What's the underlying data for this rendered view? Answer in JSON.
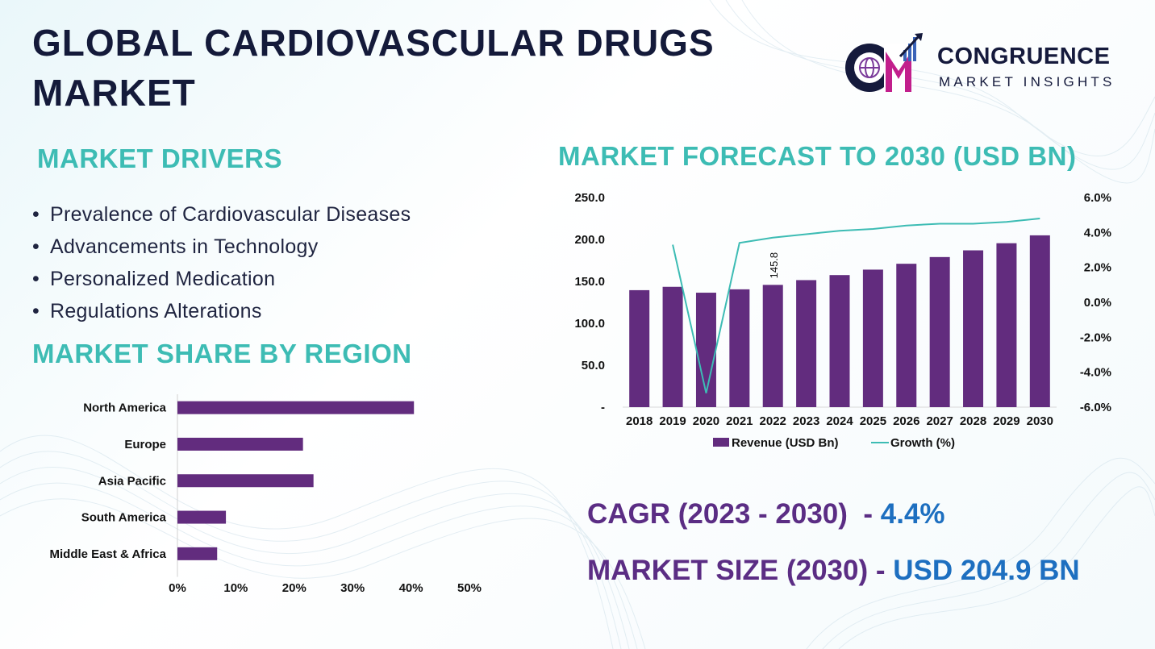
{
  "title_line1": "GLOBAL CARDIOVASCULAR DRUGS",
  "title_line2": "MARKET",
  "logo": {
    "name": "CONGRUENCE",
    "tagline": "MARKET INSIGHTS",
    "icon": "cm-globe-logo"
  },
  "drivers": {
    "title": "MARKET DRIVERS",
    "items": [
      "Prevalence of Cardiovascular Diseases",
      "Advancements in Technology",
      "Personalized Medication",
      "Regulations Alterations"
    ]
  },
  "share_title": "MARKET SHARE BY REGION",
  "forecast_title": "MARKET FORECAST TO 2030 (USD BN)",
  "metrics": {
    "cagr_label": "CAGR (2023 - 2030)",
    "cagr_dash": "  -",
    "cagr_value": " 4.4%",
    "size_label": "MARKET SIZE (2030) -",
    "size_value": " USD 204.9 BN"
  },
  "colors": {
    "bar": "#622c7e",
    "line": "#3dbcb4",
    "teal_title": "#3dbcb4",
    "purple_text": "#5b2d84",
    "blue_text": "#1d6fc0"
  },
  "chart_data": [
    {
      "type": "bar",
      "orientation": "horizontal",
      "categories": [
        "North America",
        "Europe",
        "Asia Pacific",
        "South America",
        "Middle East & Africa"
      ],
      "values": [
        40.5,
        21.5,
        23.3,
        8.3,
        6.8
      ],
      "xlim": [
        0,
        50
      ],
      "xticks": [
        "0%",
        "10%",
        "20%",
        "30%",
        "40%",
        "50%"
      ],
      "grid": false
    },
    {
      "type": "bar+line",
      "categories": [
        "2018",
        "2019",
        "2020",
        "2021",
        "2022",
        "2023",
        "2024",
        "2025",
        "2026",
        "2027",
        "2028",
        "2029",
        "2030"
      ],
      "series": [
        {
          "name": "Revenue (USD Bn)",
          "type": "bar",
          "axis": "left",
          "values": [
            139.5,
            143.5,
            136.5,
            140.5,
            145.8,
            151.5,
            157.5,
            164.0,
            171.0,
            179.0,
            187.0,
            195.5,
            204.9
          ]
        },
        {
          "name": "Growth (%)",
          "type": "line",
          "axis": "right",
          "values": [
            null,
            3.3,
            -5.2,
            3.4,
            3.7,
            3.9,
            4.1,
            4.2,
            4.4,
            4.5,
            4.5,
            4.6,
            4.8
          ]
        }
      ],
      "data_labels": [
        {
          "index": 4,
          "text": "145.8"
        }
      ],
      "ylim_left": [
        0,
        250
      ],
      "yticks_left": [
        "-",
        "50.0",
        "100.0",
        "150.0",
        "200.0",
        "250.0"
      ],
      "ylim_right": [
        -6,
        6
      ],
      "yticks_right": [
        "-6.0%",
        "-4.0%",
        "-2.0%",
        "0.0%",
        "2.0%",
        "4.0%",
        "6.0%"
      ],
      "legend_position": "bottom",
      "grid": false
    }
  ]
}
